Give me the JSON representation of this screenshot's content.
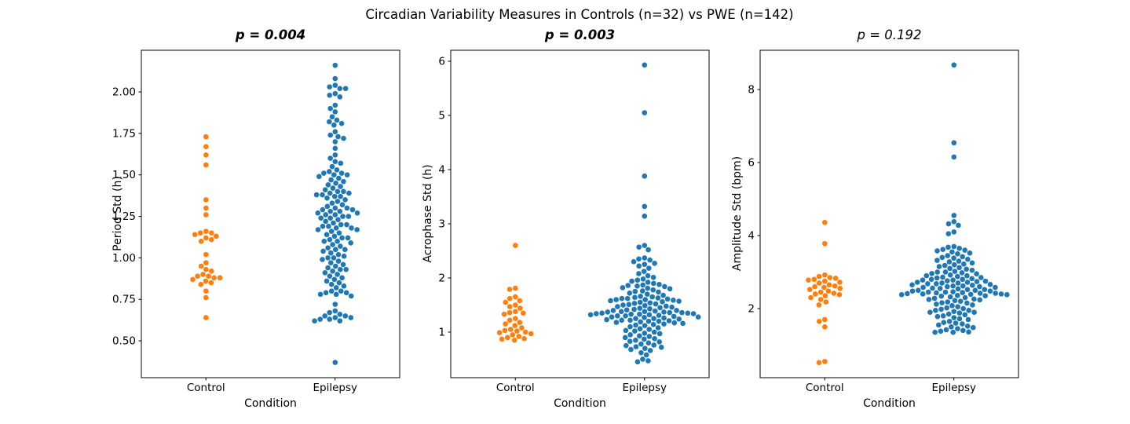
{
  "figure": {
    "title": "Circadian Variability Measures in Controls (n=32) vs PWE (n=142)",
    "background_color": "#ffffff",
    "text_color": "#000000",
    "spine_color": "#000000"
  },
  "palette": {
    "control": "#ff7f0e",
    "epilepsy": "#1f77b4"
  },
  "chart_data": [
    {
      "type": "scatter",
      "subtype": "swarm",
      "title": "p = 0.004",
      "title_style": "bold italic",
      "xlabel": "Condition",
      "ylabel": "Period Std (h)",
      "categories": [
        "Control",
        "Epilepsy"
      ],
      "ylim": [
        0.278,
        2.251
      ],
      "ytick_values": [
        0.5,
        0.75,
        1.0,
        1.25,
        1.5,
        1.75,
        2.0
      ],
      "ytick_labels": [
        "0.50",
        "0.75",
        "1.00",
        "1.25",
        "1.50",
        "1.75",
        "2.00"
      ],
      "grid": false,
      "series": [
        {
          "name": "Control",
          "color": "#ff7f0e",
          "n": 32,
          "values": [
            1.73,
            1.67,
            1.62,
            1.56,
            1.35,
            1.3,
            1.26,
            1.16,
            1.15,
            1.15,
            1.14,
            1.13,
            1.12,
            1.11,
            1.1,
            1.02,
            0.97,
            0.95,
            0.93,
            0.92,
            0.9,
            0.89,
            0.89,
            0.88,
            0.88,
            0.87,
            0.86,
            0.85,
            0.84,
            0.8,
            0.76,
            0.64
          ]
        },
        {
          "name": "Epilepsy",
          "color": "#1f77b4",
          "n": 142,
          "values": [
            2.16,
            2.08,
            2.04,
            2.03,
            2.02,
            2.02,
            1.99,
            1.98,
            1.97,
            1.92,
            1.9,
            1.88,
            1.85,
            1.83,
            1.82,
            1.81,
            1.8,
            1.76,
            1.74,
            1.73,
            1.72,
            1.7,
            1.66,
            1.62,
            1.6,
            1.58,
            1.57,
            1.55,
            1.53,
            1.52,
            1.51,
            1.51,
            1.5,
            1.5,
            1.49,
            1.48,
            1.47,
            1.46,
            1.45,
            1.44,
            1.43,
            1.42,
            1.41,
            1.4,
            1.4,
            1.39,
            1.39,
            1.38,
            1.38,
            1.37,
            1.37,
            1.36,
            1.35,
            1.34,
            1.33,
            1.32,
            1.31,
            1.3,
            1.3,
            1.29,
            1.29,
            1.28,
            1.28,
            1.27,
            1.27,
            1.26,
            1.26,
            1.25,
            1.25,
            1.24,
            1.24,
            1.23,
            1.22,
            1.21,
            1.2,
            1.2,
            1.19,
            1.19,
            1.18,
            1.18,
            1.17,
            1.17,
            1.16,
            1.15,
            1.14,
            1.13,
            1.12,
            1.12,
            1.11,
            1.1,
            1.1,
            1.09,
            1.08,
            1.07,
            1.06,
            1.05,
            1.05,
            1.04,
            1.03,
            1.02,
            1.01,
            1.0,
            1.0,
            0.99,
            0.98,
            0.97,
            0.96,
            0.95,
            0.94,
            0.93,
            0.93,
            0.92,
            0.91,
            0.9,
            0.89,
            0.88,
            0.87,
            0.86,
            0.85,
            0.84,
            0.83,
            0.82,
            0.8,
            0.8,
            0.79,
            0.79,
            0.78,
            0.78,
            0.77,
            0.72,
            0.68,
            0.67,
            0.66,
            0.65,
            0.65,
            0.64,
            0.64,
            0.63,
            0.63,
            0.62,
            0.62,
            0.37
          ]
        }
      ]
    },
    {
      "type": "scatter",
      "subtype": "swarm",
      "title": "p = 0.003",
      "title_style": "bold italic",
      "xlabel": "Condition",
      "ylabel": "Acrophase Std (h)",
      "categories": [
        "Control",
        "Epilepsy"
      ],
      "ylim": [
        0.159,
        6.203
      ],
      "ytick_values": [
        1,
        2,
        3,
        4,
        5,
        6
      ],
      "ytick_labels": [
        "1",
        "2",
        "3",
        "4",
        "5",
        "6"
      ],
      "grid": false,
      "series": [
        {
          "name": "Control",
          "color": "#ff7f0e",
          "n": 32,
          "values": [
            2.6,
            1.81,
            1.79,
            1.65,
            1.62,
            1.58,
            1.55,
            1.5,
            1.47,
            1.44,
            1.38,
            1.36,
            1.35,
            1.33,
            1.25,
            1.22,
            1.18,
            1.15,
            1.12,
            1.08,
            1.05,
            1.03,
            1.02,
            1.0,
            0.99,
            0.97,
            0.95,
            0.92,
            0.9,
            0.88,
            0.87,
            0.85
          ]
        },
        {
          "name": "Epilepsy",
          "color": "#1f77b4",
          "n": 142,
          "values": [
            5.93,
            5.05,
            3.88,
            3.32,
            3.14,
            2.6,
            2.57,
            2.52,
            2.37,
            2.35,
            2.33,
            2.3,
            2.27,
            2.25,
            2.22,
            2.18,
            2.12,
            2.08,
            2.04,
            2.01,
            1.98,
            1.96,
            1.94,
            1.92,
            1.9,
            1.88,
            1.87,
            1.86,
            1.85,
            1.84,
            1.82,
            1.81,
            1.8,
            1.78,
            1.76,
            1.75,
            1.74,
            1.72,
            1.7,
            1.68,
            1.66,
            1.65,
            1.64,
            1.63,
            1.62,
            1.62,
            1.61,
            1.6,
            1.6,
            1.59,
            1.58,
            1.57,
            1.56,
            1.55,
            1.54,
            1.53,
            1.52,
            1.51,
            1.5,
            1.49,
            1.48,
            1.47,
            1.46,
            1.45,
            1.44,
            1.43,
            1.42,
            1.41,
            1.4,
            1.4,
            1.39,
            1.38,
            1.38,
            1.37,
            1.37,
            1.36,
            1.36,
            1.35,
            1.35,
            1.34,
            1.34,
            1.33,
            1.33,
            1.32,
            1.32,
            1.31,
            1.3,
            1.3,
            1.29,
            1.28,
            1.28,
            1.27,
            1.26,
            1.25,
            1.25,
            1.24,
            1.23,
            1.22,
            1.22,
            1.21,
            1.2,
            1.2,
            1.19,
            1.18,
            1.17,
            1.16,
            1.15,
            1.14,
            1.13,
            1.12,
            1.1,
            1.08,
            1.06,
            1.05,
            1.03,
            1.02,
            1.0,
            0.98,
            0.97,
            0.95,
            0.93,
            0.92,
            0.9,
            0.88,
            0.87,
            0.85,
            0.83,
            0.82,
            0.8,
            0.78,
            0.76,
            0.75,
            0.73,
            0.72,
            0.7,
            0.68,
            0.66,
            0.62,
            0.58,
            0.5,
            0.47,
            0.45
          ]
        }
      ]
    },
    {
      "type": "scatter",
      "subtype": "swarm",
      "title": "p = 0.192",
      "title_style": "italic",
      "xlabel": "Condition",
      "ylabel": "Amplitude Std (bpm)",
      "categories": [
        "Control",
        "Epilepsy"
      ],
      "ylim": [
        0.108,
        9.075
      ],
      "ytick_values": [
        2,
        4,
        6,
        8
      ],
      "ytick_labels": [
        "2",
        "4",
        "6",
        "8"
      ],
      "grid": false,
      "series": [
        {
          "name": "Control",
          "color": "#ff7f0e",
          "n": 32,
          "values": [
            4.36,
            3.78,
            2.92,
            2.88,
            2.85,
            2.83,
            2.8,
            2.78,
            2.75,
            2.72,
            2.7,
            2.65,
            2.62,
            2.6,
            2.58,
            2.55,
            2.52,
            2.48,
            2.45,
            2.42,
            2.4,
            2.38,
            2.35,
            2.3,
            2.25,
            2.18,
            2.1,
            1.7,
            1.65,
            1.5,
            0.55,
            0.52
          ]
        },
        {
          "name": "Epilepsy",
          "color": "#1f77b4",
          "n": 142,
          "values": [
            8.67,
            6.54,
            6.15,
            4.55,
            4.38,
            4.32,
            4.28,
            4.1,
            4.05,
            3.7,
            3.68,
            3.65,
            3.62,
            3.6,
            3.58,
            3.55,
            3.52,
            3.5,
            3.45,
            3.42,
            3.4,
            3.38,
            3.35,
            3.32,
            3.3,
            3.28,
            3.25,
            3.22,
            3.2,
            3.18,
            3.15,
            3.12,
            3.1,
            3.08,
            3.05,
            3.02,
            3.0,
            3.0,
            2.98,
            2.96,
            2.95,
            2.92,
            2.9,
            2.9,
            2.88,
            2.86,
            2.85,
            2.84,
            2.82,
            2.8,
            2.8,
            2.78,
            2.78,
            2.76,
            2.75,
            2.74,
            2.72,
            2.72,
            2.7,
            2.7,
            2.68,
            2.68,
            2.66,
            2.65,
            2.64,
            2.62,
            2.62,
            2.6,
            2.6,
            2.58,
            2.58,
            2.56,
            2.55,
            2.54,
            2.52,
            2.52,
            2.5,
            2.5,
            2.48,
            2.48,
            2.46,
            2.45,
            2.45,
            2.44,
            2.43,
            2.42,
            2.42,
            2.41,
            2.4,
            2.4,
            2.39,
            2.38,
            2.38,
            2.36,
            2.35,
            2.34,
            2.32,
            2.3,
            2.28,
            2.26,
            2.25,
            2.24,
            2.22,
            2.2,
            2.18,
            2.16,
            2.15,
            2.12,
            2.1,
            2.08,
            2.05,
            2.02,
            2.0,
            1.98,
            1.95,
            1.95,
            1.92,
            1.9,
            1.9,
            1.88,
            1.85,
            1.83,
            1.8,
            1.78,
            1.75,
            1.72,
            1.7,
            1.65,
            1.62,
            1.6,
            1.58,
            1.55,
            1.52,
            1.5,
            1.48,
            1.45,
            1.42,
            1.4,
            1.38,
            1.36,
            1.35,
            1.35
          ]
        }
      ]
    }
  ]
}
